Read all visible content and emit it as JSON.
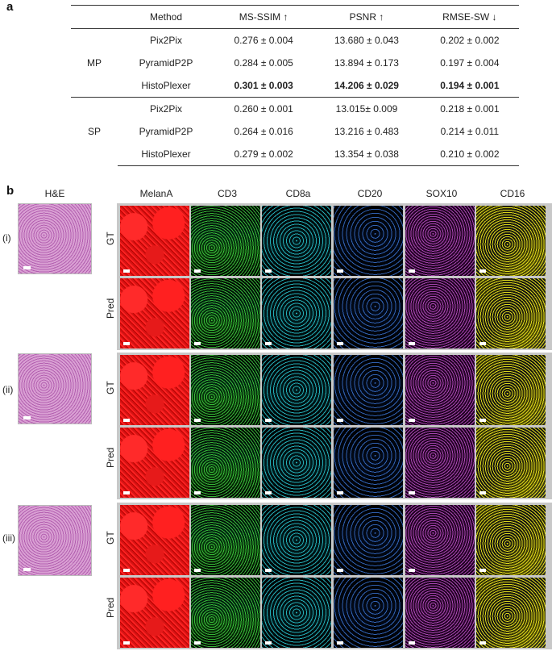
{
  "panel_a": {
    "letter": "a",
    "headers": [
      "Method",
      "MS-SSIM ↑",
      "PSNR ↑",
      "RMSE-SW ↓"
    ],
    "groups": [
      {
        "name": "MP",
        "rows": [
          {
            "method": "Pix2Pix",
            "ms_ssim": "0.276 ± 0.004",
            "psnr": "13.680 ± 0.043",
            "rmse_sw": "0.202 ± 0.002"
          },
          {
            "method": "PyramidP2P",
            "ms_ssim": "0.284 ± 0.005",
            "psnr": "13.894 ± 0.173",
            "rmse_sw": "0.197 ± 0.004"
          },
          {
            "method": "HistoPlexer",
            "ms_ssim": "0.301 ± 0.003",
            "psnr": "14.206 ± 0.029",
            "rmse_sw": "0.194 ± 0.001"
          }
        ]
      },
      {
        "name": "SP",
        "rows": [
          {
            "method": "Pix2Pix",
            "ms_ssim": "0.260 ± 0.001",
            "psnr": "13.015± 0.009",
            "rmse_sw": "0.218 ± 0.001"
          },
          {
            "method": "PyramidP2P",
            "ms_ssim": "0.264 ± 0.016",
            "psnr": "13.216 ± 0.483",
            "rmse_sw": "0.214 ± 0.011"
          },
          {
            "method": "HistoPlexer",
            "ms_ssim": "0.279 ± 0.002",
            "psnr": "13.354 ± 0.038",
            "rmse_sw": "0.210 ± 0.002"
          }
        ]
      }
    ]
  },
  "panel_b": {
    "letter": "b",
    "he_label": "H&E",
    "markers": [
      "MelanA",
      "CD3",
      "CD8a",
      "CD20",
      "SOX10",
      "CD16"
    ],
    "marker_colors": [
      "#e8161a",
      "#3cc83c",
      "#28bec8",
      "#3c78dc",
      "#be50c8",
      "#f0eb1e"
    ],
    "samples": [
      "(i)",
      "(ii)",
      "(iii)"
    ],
    "row_labels": [
      "GT",
      "Pred"
    ]
  }
}
